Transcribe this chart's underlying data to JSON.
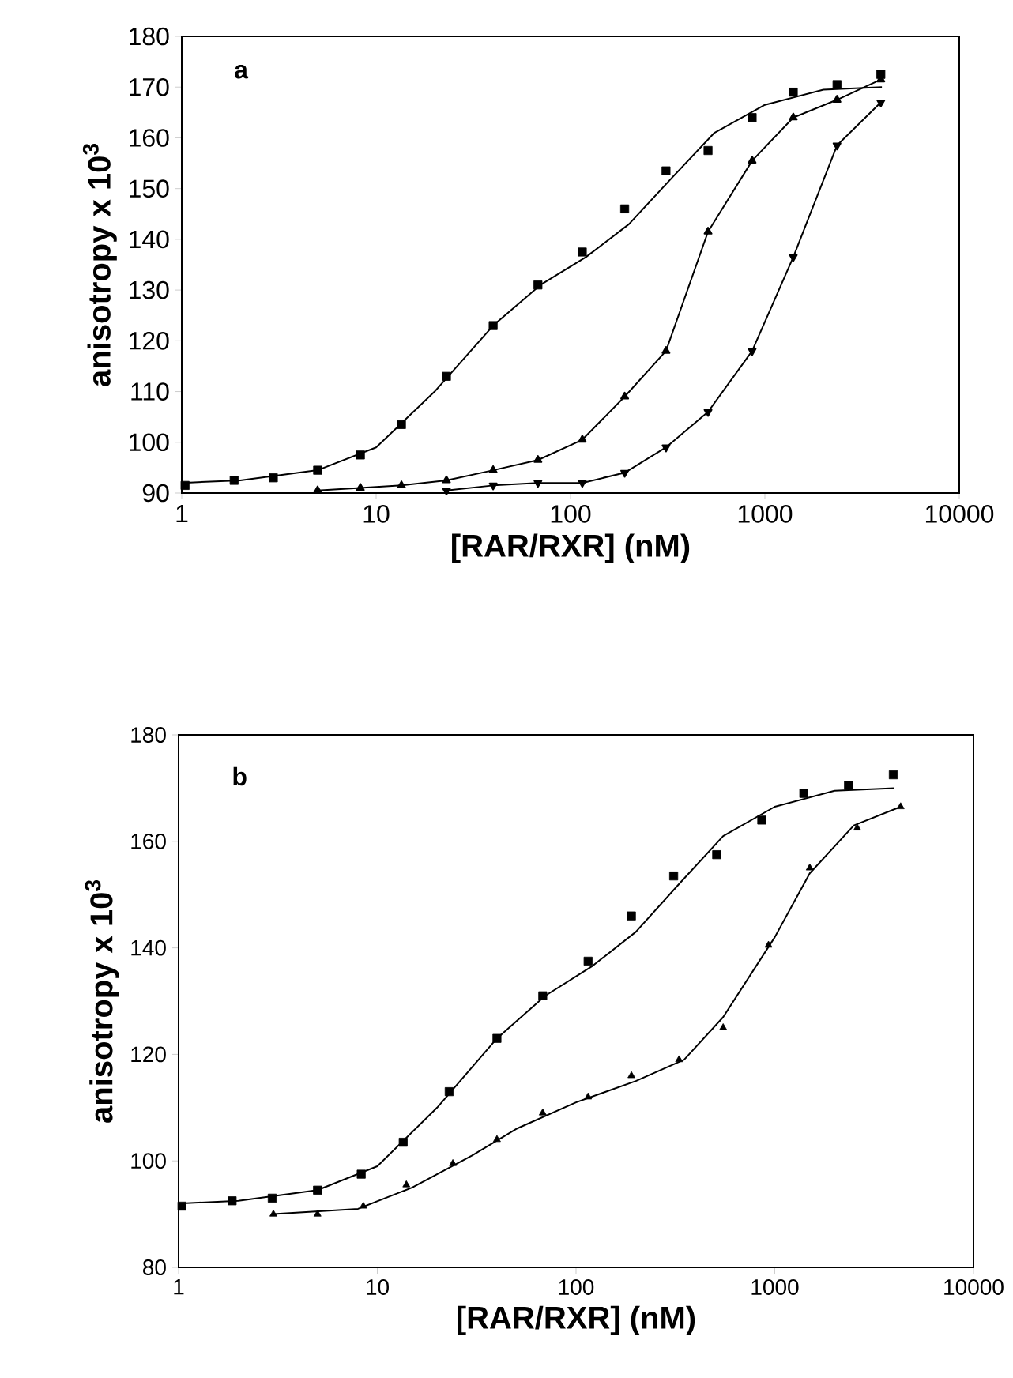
{
  "chart_data": [
    {
      "type": "line",
      "xlabel": "[RAR/RXR] (nM)",
      "ylabel": "anisotropy x 10$^{3}$",
      "log": "x",
      "xlim": [
        1,
        10000
      ],
      "ylim": [
        90,
        180
      ],
      "xticks": [
        1,
        10,
        100,
        1000,
        10000
      ],
      "yticks": [
        90,
        100,
        110,
        120,
        130,
        140,
        150,
        160,
        170,
        180
      ],
      "annotations": [
        "a"
      ],
      "series": [
        {
          "type": "scatter",
          "marker": "square",
          "color": "#000000",
          "x": [
            1.04,
            1.86,
            2.96,
            5,
            8.3,
            13.5,
            23,
            40,
            68,
            115,
            190,
            310,
            510,
            860,
            1400,
            2350,
            3950
          ],
          "values": [
            91.5,
            92.5,
            93,
            94.5,
            97.5,
            103.5,
            113,
            123,
            131,
            137.5,
            146,
            153.5,
            157.5,
            164,
            169,
            170.5,
            172.5
          ]
        },
        {
          "marker": "none",
          "color": "#000000",
          "x": [
            1,
            2,
            5,
            10,
            20,
            40,
            70,
            120,
            200,
            330,
            550,
            1000,
            2000,
            4000
          ],
          "values": [
            92,
            92.5,
            94.5,
            99,
            110,
            123,
            131,
            136.5,
            143,
            152,
            161,
            166.5,
            169.5,
            170
          ]
        },
        {
          "marker": "triangle",
          "color": "#000000",
          "x": [
            5,
            8.3,
            13.5,
            23,
            40,
            68,
            115,
            190,
            310,
            510,
            860,
            1400,
            2350,
            3950
          ],
          "values": [
            90.5,
            91,
            91.5,
            92.5,
            94.5,
            96.5,
            100.5,
            109,
            118,
            141.5,
            155.5,
            164,
            167.5,
            171.5
          ]
        },
        {
          "marker": "triangle-down",
          "color": "#000000",
          "x": [
            23,
            40,
            68,
            115,
            190,
            310,
            510,
            860,
            1400,
            2350,
            3950
          ],
          "values": [
            90.5,
            91.5,
            92,
            92,
            94,
            99,
            106,
            118,
            136.5,
            158.5,
            167
          ]
        }
      ]
    },
    {
      "type": "line",
      "xlabel": "[RAR/RXR] (nM)",
      "ylabel": "anisotropy x 10$^{3}$",
      "log": "x",
      "xlim": [
        1,
        10000
      ],
      "ylim": [
        80,
        180
      ],
      "xticks": [
        1,
        10,
        100,
        1000,
        10000
      ],
      "yticks": [
        80,
        100,
        120,
        140,
        160,
        180
      ],
      "annotations": [
        "b"
      ],
      "series": [
        {
          "type": "scatter",
          "marker": "square",
          "color": "#000000",
          "x": [
            1.04,
            1.86,
            2.96,
            5,
            8.3,
            13.5,
            23,
            40,
            68,
            115,
            190,
            310,
            510,
            860,
            1400,
            2350,
            3950
          ],
          "values": [
            91.5,
            92.5,
            93,
            94.5,
            97.5,
            103.5,
            113,
            123,
            131,
            137.5,
            146,
            153.5,
            157.5,
            164,
            169,
            170.5,
            172.5
          ]
        },
        {
          "marker": "none",
          "color": "#000000",
          "x": [
            1,
            2,
            5,
            10,
            20,
            40,
            70,
            120,
            200,
            330,
            550,
            1000,
            2000,
            4000
          ],
          "values": [
            92,
            92.5,
            94.5,
            99,
            110,
            123,
            131,
            136.5,
            143,
            152,
            161,
            166.5,
            169.5,
            170
          ]
        },
        {
          "type": "scatter",
          "marker": "triangle",
          "color": "#000000",
          "x": [
            3,
            5,
            8.5,
            14,
            24,
            40,
            68,
            115,
            190,
            330,
            550,
            930,
            1500,
            2600,
            4300
          ],
          "values": [
            90,
            90,
            91.5,
            95.5,
            99.5,
            104,
            109,
            112,
            116,
            119,
            125,
            140.5,
            155,
            162.5,
            166.5
          ]
        },
        {
          "marker": "none",
          "color": "#000000",
          "x": [
            3,
            8,
            15,
            30,
            50,
            100,
            200,
            350,
            550,
            1000,
            1500,
            2500,
            4300
          ],
          "values": [
            90,
            91,
            95,
            101,
            106,
            111,
            115,
            119,
            127,
            142,
            154,
            163,
            166.5
          ]
        }
      ]
    }
  ]
}
